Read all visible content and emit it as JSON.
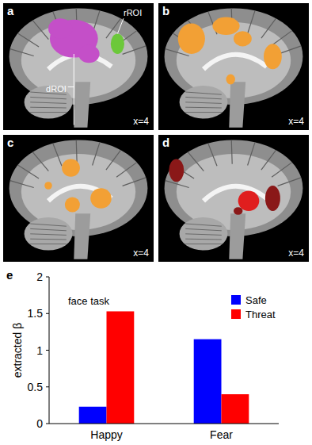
{
  "panels": [
    {
      "label": "a",
      "x_label": "x=4",
      "annotations": [
        "rROI",
        "dROI"
      ]
    },
    {
      "label": "b",
      "x_label": "x=4"
    },
    {
      "label": "c",
      "x_label": "x=4"
    },
    {
      "label": "d",
      "x_label": "x=4"
    },
    {
      "label": "e"
    }
  ],
  "chart_data": {
    "type": "bar",
    "title": "face task",
    "y_label": "extracted β",
    "categories": [
      "Happy",
      "Fear"
    ],
    "series": [
      {
        "name": "Safe",
        "color": "#0000ff",
        "values": [
          0.23,
          1.15
        ]
      },
      {
        "name": "Threat",
        "color": "#ff0000",
        "values": [
          1.53,
          0.4
        ]
      }
    ],
    "ylim": [
      0,
      2
    ],
    "yticks": [
      0,
      0.5,
      1,
      1.5,
      2
    ],
    "grid": false,
    "legend": "top-right"
  }
}
